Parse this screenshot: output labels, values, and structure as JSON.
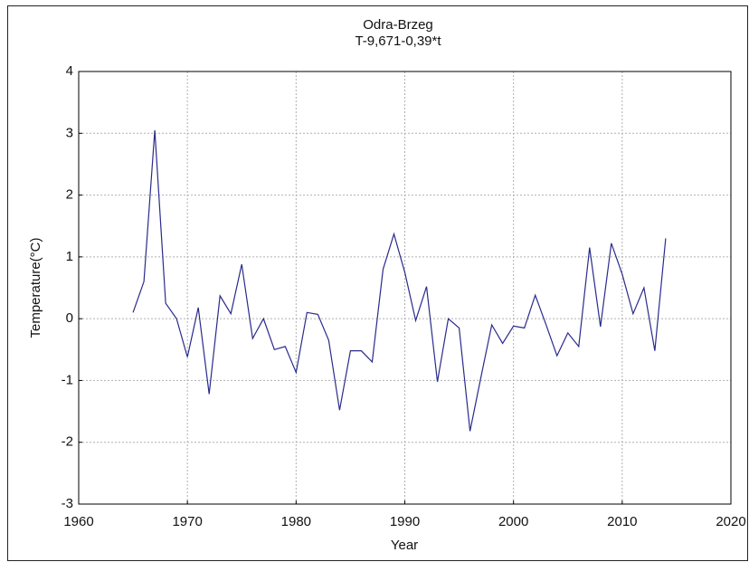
{
  "chart_data": {
    "type": "line",
    "title": "Odra-Brzeg",
    "subtitle": "T-9,671-0,39*t",
    "x_label": "Year",
    "y_label": "Temperature(°C)",
    "x": [
      1965,
      1966,
      1967,
      1968,
      1969,
      1970,
      1971,
      1972,
      1973,
      1974,
      1975,
      1976,
      1977,
      1978,
      1979,
      1980,
      1981,
      1982,
      1983,
      1984,
      1985,
      1986,
      1987,
      1988,
      1989,
      1990,
      1991,
      1992,
      1993,
      1994,
      1995,
      1996,
      1997,
      1998,
      1999,
      2000,
      2001,
      2002,
      2003,
      2004,
      2005,
      2006,
      2007,
      2008,
      2009,
      2010,
      2011,
      2012,
      2013,
      2014
    ],
    "series": [
      {
        "name": "Temperature",
        "color": "#2a2a8c",
        "values": [
          0.1,
          0.6,
          3.05,
          0.25,
          0.0,
          -0.62,
          0.18,
          -1.22,
          0.37,
          0.08,
          0.88,
          -0.32,
          0.0,
          -0.5,
          -0.45,
          -0.87,
          0.1,
          0.07,
          -0.35,
          -1.48,
          -0.52,
          -0.52,
          -0.7,
          0.8,
          1.37,
          0.75,
          -0.03,
          0.52,
          -1.02,
          0.0,
          -0.15,
          -1.82,
          -0.95,
          -0.1,
          -0.4,
          -0.12,
          -0.15,
          0.38,
          -0.1,
          -0.6,
          -0.23,
          -0.45,
          1.15,
          -0.13,
          1.22,
          0.72,
          0.08,
          0.5,
          -0.52,
          1.3
        ]
      }
    ],
    "xlim": [
      1960,
      2020
    ],
    "xticks": [
      1960,
      1970,
      1980,
      1990,
      2000,
      2010,
      2020
    ],
    "ylim": [
      -3,
      4
    ],
    "yticks": [
      -3,
      -2,
      -1,
      0,
      1,
      2,
      3,
      4
    ],
    "grid": true
  }
}
